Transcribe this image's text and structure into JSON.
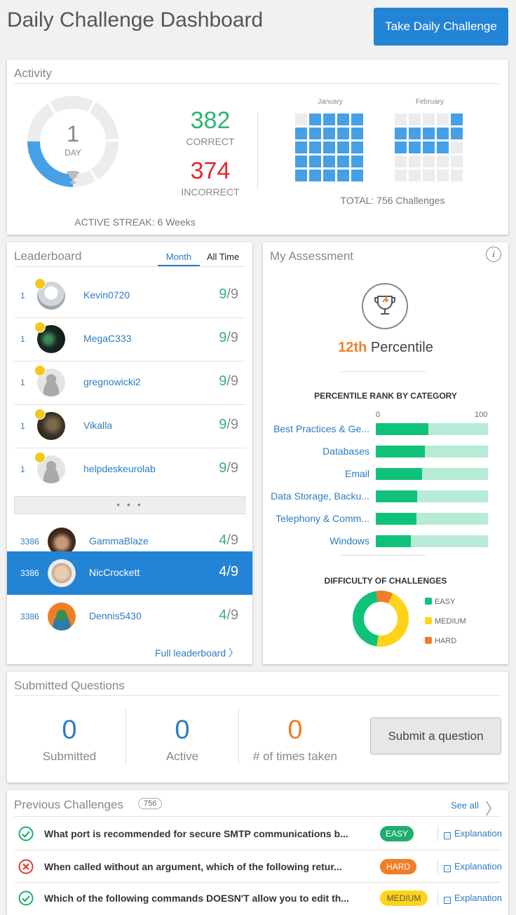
{
  "header": {
    "title": "Daily Challenge Dashboard",
    "cta_label": "Take Daily Challenge"
  },
  "activity": {
    "title": "Activity",
    "streak_value": "1",
    "streak_unit": "DAY",
    "streak_fraction": 0.25,
    "correct_count": "382",
    "correct_label": "CORRECT",
    "incorrect_count": "374",
    "incorrect_label": "INCORRECT",
    "active_streak": "ACTIVE STREAK: 6 Weeks",
    "total": "TOTAL: 756 Challenges",
    "months": [
      {
        "label": "January",
        "weeks": [
          [
            0,
            1,
            1,
            1,
            1
          ],
          [
            1,
            1,
            1,
            1,
            1
          ],
          [
            1,
            1,
            1,
            1,
            1
          ],
          [
            1,
            1,
            1,
            1,
            1
          ],
          [
            1,
            1,
            1,
            1,
            1
          ]
        ]
      },
      {
        "label": "February",
        "weeks": [
          [
            0,
            0,
            0,
            0,
            1
          ],
          [
            1,
            1,
            1,
            1,
            1
          ],
          [
            1,
            1,
            1,
            1,
            0
          ],
          [
            0,
            0,
            0,
            0,
            0
          ],
          [
            0,
            0,
            0,
            0,
            0
          ]
        ]
      }
    ]
  },
  "leaderboard": {
    "title": "Leaderboard",
    "tabs": [
      {
        "label": "Month",
        "active": true
      },
      {
        "label": "All Time",
        "active": false
      }
    ],
    "top": [
      {
        "rank": "1",
        "name": "Kevin0720",
        "score": "9",
        "total": "/9"
      },
      {
        "rank": "1",
        "name": "MegaC333",
        "score": "9",
        "total": "/9"
      },
      {
        "rank": "1",
        "name": "gregnowicki2",
        "score": "9",
        "total": "/9"
      },
      {
        "rank": "1",
        "name": "Vikalla",
        "score": "9",
        "total": "/9"
      },
      {
        "rank": "1",
        "name": "helpdeskeurolab",
        "score": "9",
        "total": "/9"
      }
    ],
    "more_label": "• • •",
    "nearby": [
      {
        "rank": "3386",
        "name": "GammaBlaze",
        "score": "4",
        "total": "/9"
      },
      {
        "rank": "3386",
        "name": "NicCrockett",
        "score": "4",
        "total": "/9",
        "me": true
      },
      {
        "rank": "3386",
        "name": "Dennis5430",
        "score": "4",
        "total": "/9"
      }
    ],
    "full_link": "Full leaderboard 〉"
  },
  "assessment": {
    "title": "My Assessment",
    "info": "i",
    "percentile_value": "12th",
    "percentile_label": "Percentile",
    "rank_heading": "PERCENTILE RANK BY CATEGORY",
    "scale_min": "0",
    "scale_max": "100",
    "categories": [
      {
        "label": "Best Practices & Ge...",
        "value": 47
      },
      {
        "label": "Databases",
        "value": 44
      },
      {
        "label": "Email",
        "value": 41
      },
      {
        "label": "Data Storage, Backu...",
        "value": 37
      },
      {
        "label": "Telephony & Comm...",
        "value": 36
      },
      {
        "label": "Windows",
        "value": 31
      }
    ],
    "difficulty_heading": "DIFFICULTY OF CHALLENGES",
    "difficulty": [
      {
        "label": "EASY",
        "value": 45,
        "color": "#0ec27a"
      },
      {
        "label": "MEDIUM",
        "value": 45,
        "color": "#ffd31a"
      },
      {
        "label": "HARD",
        "value": 10,
        "color": "#f07e26"
      }
    ]
  },
  "submitted": {
    "title": "Submitted Questions",
    "stats": [
      {
        "value": "0",
        "label": "Submitted",
        "color": "#2d7cc1"
      },
      {
        "value": "0",
        "label": "Active",
        "color": "#2d7cc1"
      },
      {
        "value": "0",
        "label": "# of times taken",
        "color": "#f07e26"
      }
    ],
    "button": "Submit a question"
  },
  "previous": {
    "title": "Previous Challenges",
    "count": "756",
    "see_all": "See all",
    "items": [
      {
        "status": "correct",
        "question": "What port is recommended for secure SMTP communications b...",
        "difficulty": "EASY",
        "color": "#1fae6c",
        "explanation": "Explanation"
      },
      {
        "status": "incorrect",
        "question": "When called without an argument, which of the following retur...",
        "difficulty": "HARD",
        "color": "#f07e26",
        "explanation": "Explanation"
      },
      {
        "status": "correct",
        "question": "Which of the following commands DOESN'T allow you to edit th...",
        "difficulty": "MEDIUM",
        "color": "#ffd31a",
        "explanation": "Explanation"
      }
    ]
  }
}
